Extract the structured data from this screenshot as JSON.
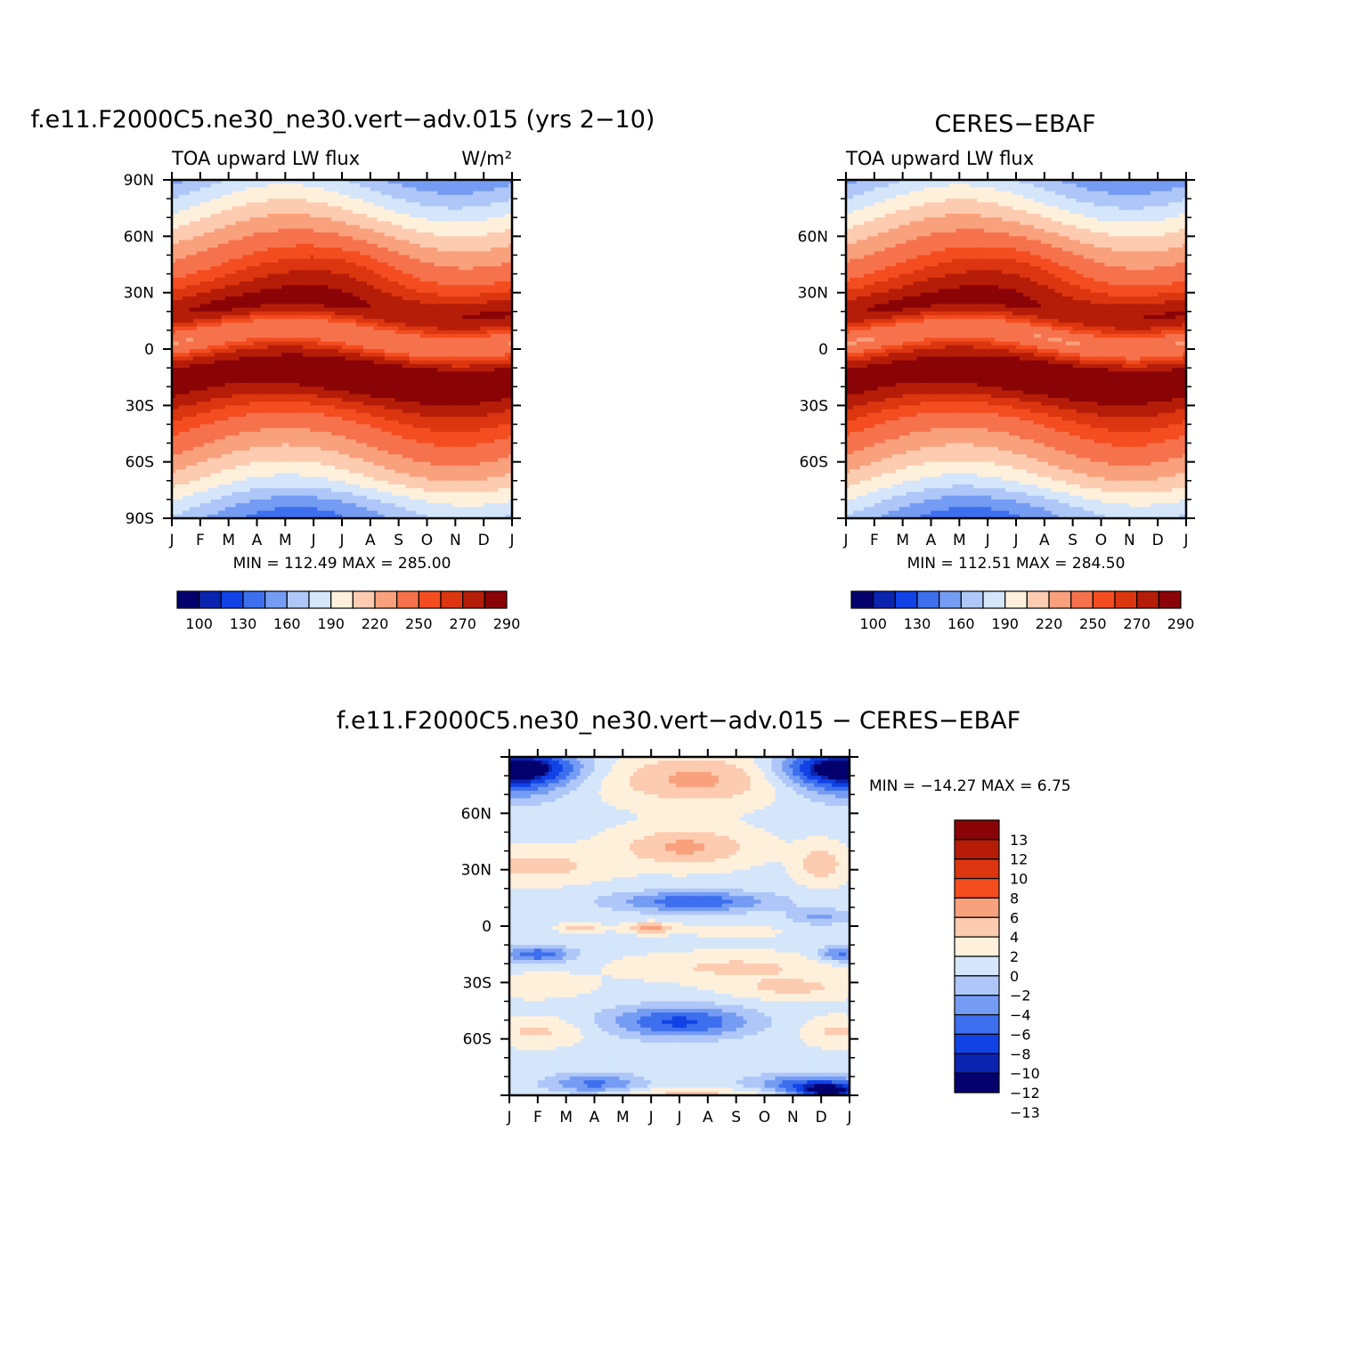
{
  "chart_data": [
    {
      "type": "heatmap",
      "id": "model",
      "title": "f.e11.F2000C5.ne30_ne30.vert−adv.015 (yrs 2−10)",
      "subtitle_left": "TOA upward LW flux",
      "subtitle_right": "W/m²",
      "x_ticks": [
        "J",
        "F",
        "M",
        "A",
        "M",
        "J",
        "J",
        "A",
        "S",
        "O",
        "N",
        "D",
        "J"
      ],
      "y_ticks": [
        {
          "lat": 90,
          "label": "90N"
        },
        {
          "lat": 60,
          "label": "60N"
        },
        {
          "lat": 30,
          "label": "30N"
        },
        {
          "lat": 0,
          "label": "0"
        },
        {
          "lat": -30,
          "label": "30S"
        },
        {
          "lat": -60,
          "label": "60S"
        },
        {
          "lat": -90,
          "label": "90S"
        }
      ],
      "ylim": [
        -90,
        90
      ],
      "stats": "MIN =  112.49  MAX =  285.00",
      "min": 112.49,
      "max": 285.0,
      "colorbar": {
        "orientation": "horizontal",
        "colors": [
          "#03006e",
          "#0a24b0",
          "#1042e6",
          "#3d6fee",
          "#759cf3",
          "#aec7f8",
          "#d5e6fb",
          "#fff0dc",
          "#fdcbb0",
          "#f9a07c",
          "#f6724c",
          "#f44d20",
          "#dc3610",
          "#b51d08",
          "#8a0407"
        ],
        "labels": [
          "100",
          "130",
          "160",
          "190",
          "220",
          "250",
          "270",
          "290"
        ]
      }
    },
    {
      "type": "heatmap",
      "id": "obs",
      "title": "CERES−EBAF",
      "subtitle_left": "TOA upward LW flux",
      "x_ticks": [
        "J",
        "F",
        "M",
        "A",
        "M",
        "J",
        "J",
        "A",
        "S",
        "O",
        "N",
        "D",
        "J"
      ],
      "y_ticks": [
        {
          "lat": 60,
          "label": "60N"
        },
        {
          "lat": 30,
          "label": "30N"
        },
        {
          "lat": 0,
          "label": "0"
        },
        {
          "lat": -30,
          "label": "30S"
        },
        {
          "lat": -60,
          "label": "60S"
        }
      ],
      "ylim": [
        -90,
        90
      ],
      "stats": "MIN =  112.51  MAX =  284.50",
      "min": 112.51,
      "max": 284.5,
      "colorbar": {
        "orientation": "horizontal",
        "colors": [
          "#03006e",
          "#0a24b0",
          "#1042e6",
          "#3d6fee",
          "#759cf3",
          "#aec7f8",
          "#d5e6fb",
          "#fff0dc",
          "#fdcbb0",
          "#f9a07c",
          "#f6724c",
          "#f44d20",
          "#dc3610",
          "#b51d08",
          "#8a0407"
        ],
        "labels": [
          "100",
          "130",
          "160",
          "190",
          "220",
          "250",
          "270",
          "290"
        ]
      }
    },
    {
      "type": "heatmap",
      "id": "diff",
      "title": "f.e11.F2000C5.ne30_ne30.vert−adv.015 − CERES−EBAF",
      "x_ticks": [
        "J",
        "F",
        "M",
        "A",
        "M",
        "J",
        "J",
        "A",
        "S",
        "O",
        "N",
        "D",
        "J"
      ],
      "y_ticks": [
        {
          "lat": 60,
          "label": "60N"
        },
        {
          "lat": 30,
          "label": "30N"
        },
        {
          "lat": 0,
          "label": "0"
        },
        {
          "lat": -30,
          "label": "30S"
        },
        {
          "lat": -60,
          "label": "60S"
        }
      ],
      "ylim": [
        -90,
        90
      ],
      "stats": "MIN =  −14.27  MAX =     6.75",
      "min": -14.27,
      "max": 6.75,
      "colorbar": {
        "orientation": "vertical",
        "colors": [
          "#8a0407",
          "#b51d08",
          "#dc3610",
          "#f44d20",
          "#f9a07c",
          "#fdcbb0",
          "#fff0dc",
          "#d5e6fb",
          "#aec7f8",
          "#759cf3",
          "#3d6fee",
          "#1042e6",
          "#0a24b0",
          "#03006e"
        ],
        "labels": [
          "13",
          "12",
          "10",
          "8",
          "6",
          "4",
          "2",
          "0",
          "−2",
          "−4",
          "−6",
          "−8",
          "−10",
          "−12",
          "−13"
        ]
      }
    }
  ]
}
